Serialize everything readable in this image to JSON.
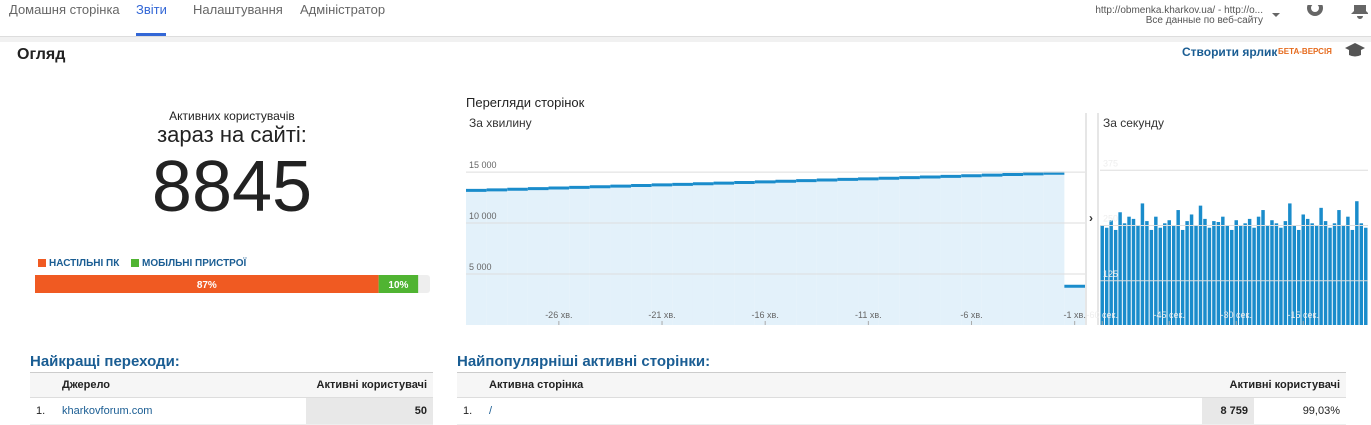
{
  "nav": {
    "items": [
      "Домашня сторінка",
      "Звіти",
      "Налаштування",
      "Адміністратор"
    ],
    "active": 1
  },
  "account": {
    "url": "http://obmenka.kharkov.ua/ - http://o...",
    "subtitle": "Все данные по веб-сайту"
  },
  "header": {
    "title": "Огляд",
    "shortcut": "Створити ярлик",
    "beta": "БЕТА-ВЕРСІЯ"
  },
  "active_users": {
    "label": "Активних користувачів",
    "sublabel": "зараз на сайті:",
    "count": "8845"
  },
  "devices": {
    "type": "stacked-bar",
    "series": [
      {
        "name": "НАСТІЛЬНІ ПК",
        "color": "#f05a22",
        "value": 87,
        "value_label": "87%"
      },
      {
        "name": "МОБІЛЬНІ ПРИСТРОЇ",
        "color": "#50b432",
        "value": 10,
        "value_label": "10%"
      }
    ],
    "xlim": [
      0,
      100
    ]
  },
  "chart_data": [
    {
      "type": "step-area",
      "title": "Перегляди сторінок",
      "subtitle": "За хвилину",
      "color": "#1a8ccb",
      "x": [
        -30,
        -29,
        -28,
        -27,
        -26,
        -25,
        -24,
        -23,
        -22,
        -21,
        -20,
        -19,
        -18,
        -17,
        -16,
        -15,
        -14,
        -13,
        -12,
        -11,
        -10,
        -9,
        -8,
        -7,
        -6,
        -5,
        -4,
        -3,
        -2,
        -1
      ],
      "values": [
        13200,
        13260,
        13320,
        13380,
        13440,
        13500,
        13560,
        13620,
        13680,
        13740,
        13800,
        13860,
        13920,
        13980,
        14040,
        14100,
        14160,
        14220,
        14280,
        14340,
        14400,
        14460,
        14520,
        14580,
        14640,
        14700,
        14760,
        14820,
        14880,
        3800
      ],
      "xlim": [
        -30.5,
        -0.5
      ],
      "xticks": [
        {
          "value": -26,
          "label": "-26 хв."
        },
        {
          "value": -21,
          "label": "-21 хв."
        },
        {
          "value": -16,
          "label": "-16 хв."
        },
        {
          "value": -11,
          "label": "-11 хв."
        },
        {
          "value": -6,
          "label": "-6 хв."
        },
        {
          "value": -1,
          "label": "-1 хв."
        }
      ],
      "ylim": [
        0,
        20600
      ],
      "yticks": [
        {
          "value": 5000,
          "label": "5 000"
        },
        {
          "value": 10000,
          "label": "10 000"
        },
        {
          "value": 15000,
          "label": "15 000"
        }
      ],
      "grid": true
    },
    {
      "type": "bar",
      "subtitle": "За секунду",
      "color": "#1a8ccb",
      "x": [
        -60,
        -59,
        -58,
        -57,
        -56,
        -55,
        -54,
        -53,
        -52,
        -51,
        -50,
        -49,
        -48,
        -47,
        -46,
        -45,
        -44,
        -43,
        -42,
        -41,
        -40,
        -39,
        -38,
        -37,
        -36,
        -35,
        -34,
        -33,
        -32,
        -31,
        -30,
        -29,
        -28,
        -27,
        -26,
        -25,
        -24,
        -23,
        -22,
        -21,
        -20,
        -19,
        -18,
        -17,
        -16,
        -15,
        -14,
        -13,
        -12,
        -11,
        -10,
        -9,
        -8,
        -7,
        -6,
        -5,
        -4,
        -3,
        -2,
        -1
      ],
      "values": [
        250,
        245,
        262,
        240,
        280,
        255,
        270,
        265,
        250,
        300,
        260,
        240,
        270,
        245,
        255,
        262,
        250,
        285,
        240,
        260,
        275,
        250,
        295,
        265,
        245,
        260,
        258,
        270,
        250,
        240,
        262,
        250,
        255,
        265,
        245,
        270,
        285,
        250,
        262,
        255,
        245,
        260,
        300,
        250,
        240,
        275,
        265,
        255,
        250,
        290,
        260,
        245,
        255,
        285,
        250,
        270,
        240,
        305,
        255,
        245
      ],
      "xlim": [
        -60.5,
        -0.5
      ],
      "xticks": [
        {
          "value": -60,
          "label": "-60 сек."
        },
        {
          "value": -45,
          "label": "-45 сек."
        },
        {
          "value": -30,
          "label": "-30 сек."
        },
        {
          "value": -15,
          "label": "-15 сек."
        }
      ],
      "ylim": [
        25,
        500
      ],
      "yticks": [
        125,
        250,
        375
      ],
      "grid": true
    }
  ],
  "referrals": {
    "title": "Найкращі переходи:",
    "columns": [
      "Джерело",
      "Активні користувачі"
    ],
    "rows": [
      [
        "1.",
        "kharkovforum.com",
        "50"
      ]
    ]
  },
  "pages": {
    "title": "Найпопулярніші активні сторінки:",
    "columns": [
      "Активна сторінка",
      "Активні користувачі"
    ],
    "rows": [
      [
        "1.",
        "/",
        "8 759",
        "99,03%"
      ]
    ]
  }
}
